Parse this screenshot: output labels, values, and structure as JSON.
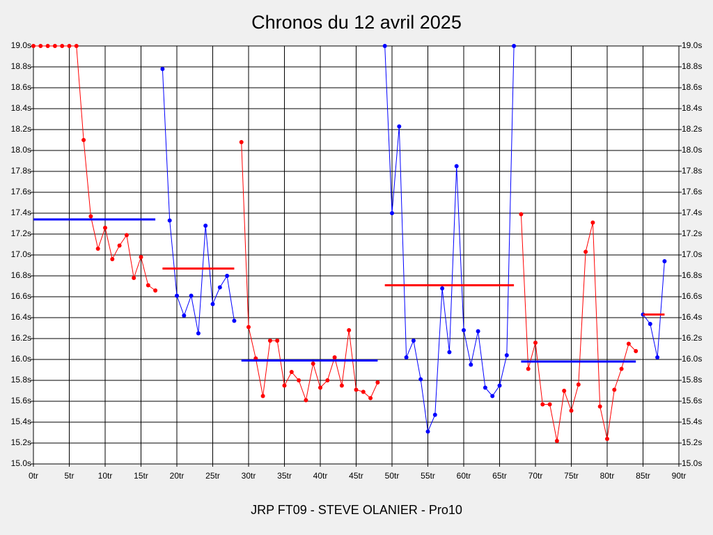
{
  "chart_data": {
    "type": "line",
    "title": "Chronos du 12 avril 2025",
    "footer": "JRP FT09 - STEVE OLANIER - Pro10",
    "xlim": [
      0,
      90
    ],
    "ylim": [
      15.0,
      19.0
    ],
    "grid": true,
    "xticks": [
      {
        "value": 0,
        "label": "0tr"
      },
      {
        "value": 5,
        "label": "5tr"
      },
      {
        "value": 10,
        "label": "10tr"
      },
      {
        "value": 15,
        "label": "15tr"
      },
      {
        "value": 20,
        "label": "20tr"
      },
      {
        "value": 25,
        "label": "25tr"
      },
      {
        "value": 30,
        "label": "30tr"
      },
      {
        "value": 35,
        "label": "35tr"
      },
      {
        "value": 40,
        "label": "40tr"
      },
      {
        "value": 45,
        "label": "45tr"
      },
      {
        "value": 50,
        "label": "50tr"
      },
      {
        "value": 55,
        "label": "55tr"
      },
      {
        "value": 60,
        "label": "60tr"
      },
      {
        "value": 65,
        "label": "65tr"
      },
      {
        "value": 70,
        "label": "70tr"
      },
      {
        "value": 75,
        "label": "75tr"
      },
      {
        "value": 80,
        "label": "80tr"
      },
      {
        "value": 85,
        "label": "85tr"
      },
      {
        "value": 90,
        "label": "90tr"
      }
    ],
    "yticks": [
      {
        "value": 15.0,
        "label": "15.0s"
      },
      {
        "value": 15.2,
        "label": "15.2s"
      },
      {
        "value": 15.4,
        "label": "15.4s"
      },
      {
        "value": 15.6,
        "label": "15.6s"
      },
      {
        "value": 15.8,
        "label": "15.8s"
      },
      {
        "value": 16.0,
        "label": "16.0s"
      },
      {
        "value": 16.2,
        "label": "16.2s"
      },
      {
        "value": 16.4,
        "label": "16.4s"
      },
      {
        "value": 16.6,
        "label": "16.6s"
      },
      {
        "value": 16.8,
        "label": "16.8s"
      },
      {
        "value": 17.0,
        "label": "17.0s"
      },
      {
        "value": 17.2,
        "label": "17.2s"
      },
      {
        "value": 17.4,
        "label": "17.4s"
      },
      {
        "value": 17.6,
        "label": "17.6s"
      },
      {
        "value": 17.8,
        "label": "17.8s"
      },
      {
        "value": 18.0,
        "label": "18.0s"
      },
      {
        "value": 18.2,
        "label": "18.2s"
      },
      {
        "value": 18.4,
        "label": "18.4s"
      },
      {
        "value": 18.6,
        "label": "18.6s"
      },
      {
        "value": 18.8,
        "label": "18.8s"
      },
      {
        "value": 19.0,
        "label": "19.0s"
      }
    ],
    "series": [
      {
        "color": "#ff0000",
        "average_color": "#0000ff",
        "average": 17.34,
        "x": [
          0,
          1,
          2,
          3,
          4,
          5,
          6,
          7,
          8,
          9,
          10,
          11,
          12,
          13,
          14,
          15,
          16,
          17
        ],
        "values": [
          19.0,
          19.0,
          19.0,
          19.0,
          19.0,
          19.0,
          19.0,
          18.1,
          17.37,
          17.06,
          17.26,
          16.96,
          17.09,
          17.19,
          16.78,
          16.98,
          16.71,
          16.66
        ]
      },
      {
        "color": "#0000ff",
        "average_color": "#ff0000",
        "average": 16.87,
        "x": [
          18,
          19,
          20,
          21,
          22,
          23,
          24,
          25,
          26,
          27,
          28
        ],
        "values": [
          18.78,
          17.33,
          16.61,
          16.42,
          16.61,
          16.25,
          17.28,
          16.53,
          16.69,
          16.8,
          16.37
        ]
      },
      {
        "color": "#ff0000",
        "average_color": "#0000ff",
        "average": 15.99,
        "x": [
          29,
          30,
          31,
          32,
          33,
          34,
          35,
          36,
          37,
          38,
          39,
          40,
          41,
          42,
          43,
          44,
          45,
          46,
          47,
          48
        ],
        "values": [
          18.08,
          16.31,
          16.01,
          15.65,
          16.18,
          16.18,
          15.75,
          15.88,
          15.8,
          15.61,
          15.96,
          15.73,
          15.8,
          16.02,
          15.75,
          16.28,
          15.71,
          15.69,
          15.63,
          15.78
        ]
      },
      {
        "color": "#0000ff",
        "average_color": "#ff0000",
        "average": 16.71,
        "x": [
          49,
          50,
          51,
          52,
          53,
          54,
          55,
          56,
          57,
          58,
          59,
          60,
          61,
          62,
          63,
          64,
          65,
          66,
          67
        ],
        "values": [
          19.0,
          17.4,
          18.23,
          16.02,
          16.18,
          15.81,
          15.31,
          15.47,
          16.68,
          16.07,
          17.85,
          16.28,
          15.95,
          16.27,
          15.73,
          15.65,
          15.75,
          16.04,
          19.0
        ]
      },
      {
        "color": "#ff0000",
        "average_color": "#0000ff",
        "average": 15.98,
        "x": [
          68,
          69,
          70,
          71,
          72,
          73,
          74,
          75,
          76,
          77,
          78,
          79,
          80,
          81,
          82,
          83,
          84
        ],
        "values": [
          17.39,
          15.91,
          16.16,
          15.57,
          15.57,
          15.22,
          15.7,
          15.51,
          15.76,
          17.03,
          17.31,
          15.55,
          15.24,
          15.71,
          15.91,
          16.15,
          16.08
        ]
      },
      {
        "color": "#0000ff",
        "average_color": "#ff0000",
        "average": 16.43,
        "x": [
          85,
          86,
          87,
          88
        ],
        "values": [
          16.43,
          16.34,
          16.02,
          16.94
        ]
      }
    ]
  }
}
